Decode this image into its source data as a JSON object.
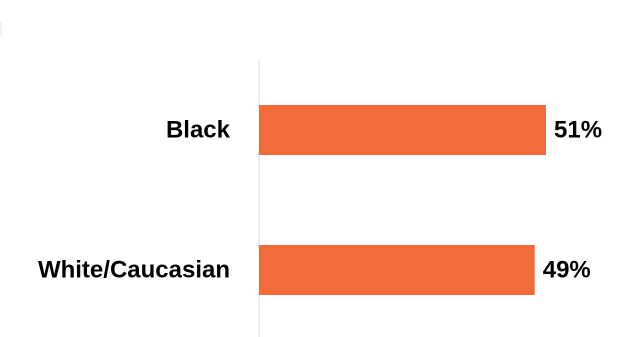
{
  "chart_data": {
    "type": "bar",
    "orientation": "horizontal",
    "categories": [
      "Black",
      "White/Caucasian"
    ],
    "values": [
      51,
      49
    ],
    "value_labels": [
      "51%",
      "49%"
    ],
    "unit": "%",
    "title": "",
    "xlabel": "",
    "ylabel": "",
    "grid": false,
    "legend": "none",
    "bar_color": "#F26B3A",
    "axis_color": "#D9D9D9"
  }
}
